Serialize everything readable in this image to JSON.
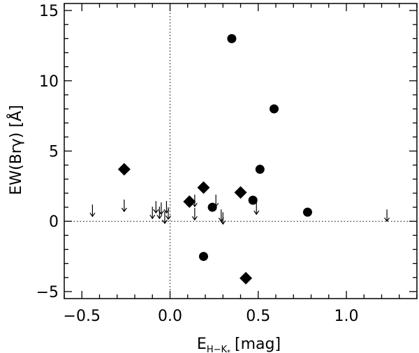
{
  "chart_data": {
    "type": "scatter",
    "xlabel": {
      "base": "E",
      "sub": "H−K",
      "subsub": "*",
      "unit": "[mag]"
    },
    "ylabel": "EW(Brγ)  [Å]",
    "xlim": [
      -0.6,
      1.4
    ],
    "ylim": [
      -5.5,
      15.5
    ],
    "xticks": [
      -0.5,
      0.0,
      0.5,
      1.0
    ],
    "xtick_labels": [
      "−0.5",
      "0.0",
      "0.5",
      "1.0"
    ],
    "yticks": [
      -5,
      0,
      5,
      10,
      15
    ],
    "ytick_labels": [
      "−5",
      "0",
      "5",
      "10",
      "15"
    ],
    "reference_lines": {
      "x": 0.0,
      "y": 0.0,
      "style": "dotted"
    },
    "grid": false,
    "series": [
      {
        "marker": "circle",
        "points": [
          {
            "x": 0.35,
            "y": 13.0
          },
          {
            "x": 0.59,
            "y": 8.0
          },
          {
            "x": 0.51,
            "y": 3.7
          },
          {
            "x": 0.47,
            "y": 1.5
          },
          {
            "x": 0.24,
            "y": 1.0
          },
          {
            "x": 0.78,
            "y": 0.65
          },
          {
            "x": 0.19,
            "y": -2.5
          }
        ]
      },
      {
        "marker": "diamond",
        "points": [
          {
            "x": -0.26,
            "y": 3.7
          },
          {
            "x": 0.19,
            "y": 2.4
          },
          {
            "x": 0.4,
            "y": 2.05
          },
          {
            "x": 0.11,
            "y": 1.4
          },
          {
            "x": 0.43,
            "y": -4.05
          }
        ]
      },
      {
        "marker": "upper-limit-arrow",
        "points": [
          {
            "x": -0.44,
            "y": 0.35
          },
          {
            "x": -0.26,
            "y": 0.7
          },
          {
            "x": -0.1,
            "y": 0.2
          },
          {
            "x": -0.08,
            "y": 0.6
          },
          {
            "x": -0.06,
            "y": 0.2
          },
          {
            "x": -0.05,
            "y": 0.5
          },
          {
            "x": -0.03,
            "y": -0.15
          },
          {
            "x": -0.02,
            "y": 0.6
          },
          {
            "x": -0.01,
            "y": 0.15
          },
          {
            "x": 0.14,
            "y": 1.05
          },
          {
            "x": 0.14,
            "y": 0.1
          },
          {
            "x": 0.26,
            "y": 1.05
          },
          {
            "x": 0.29,
            "y": 0.0
          },
          {
            "x": 0.3,
            "y": -0.2
          },
          {
            "x": 0.49,
            "y": 0.5
          },
          {
            "x": 1.23,
            "y": 0.0
          }
        ]
      }
    ]
  }
}
